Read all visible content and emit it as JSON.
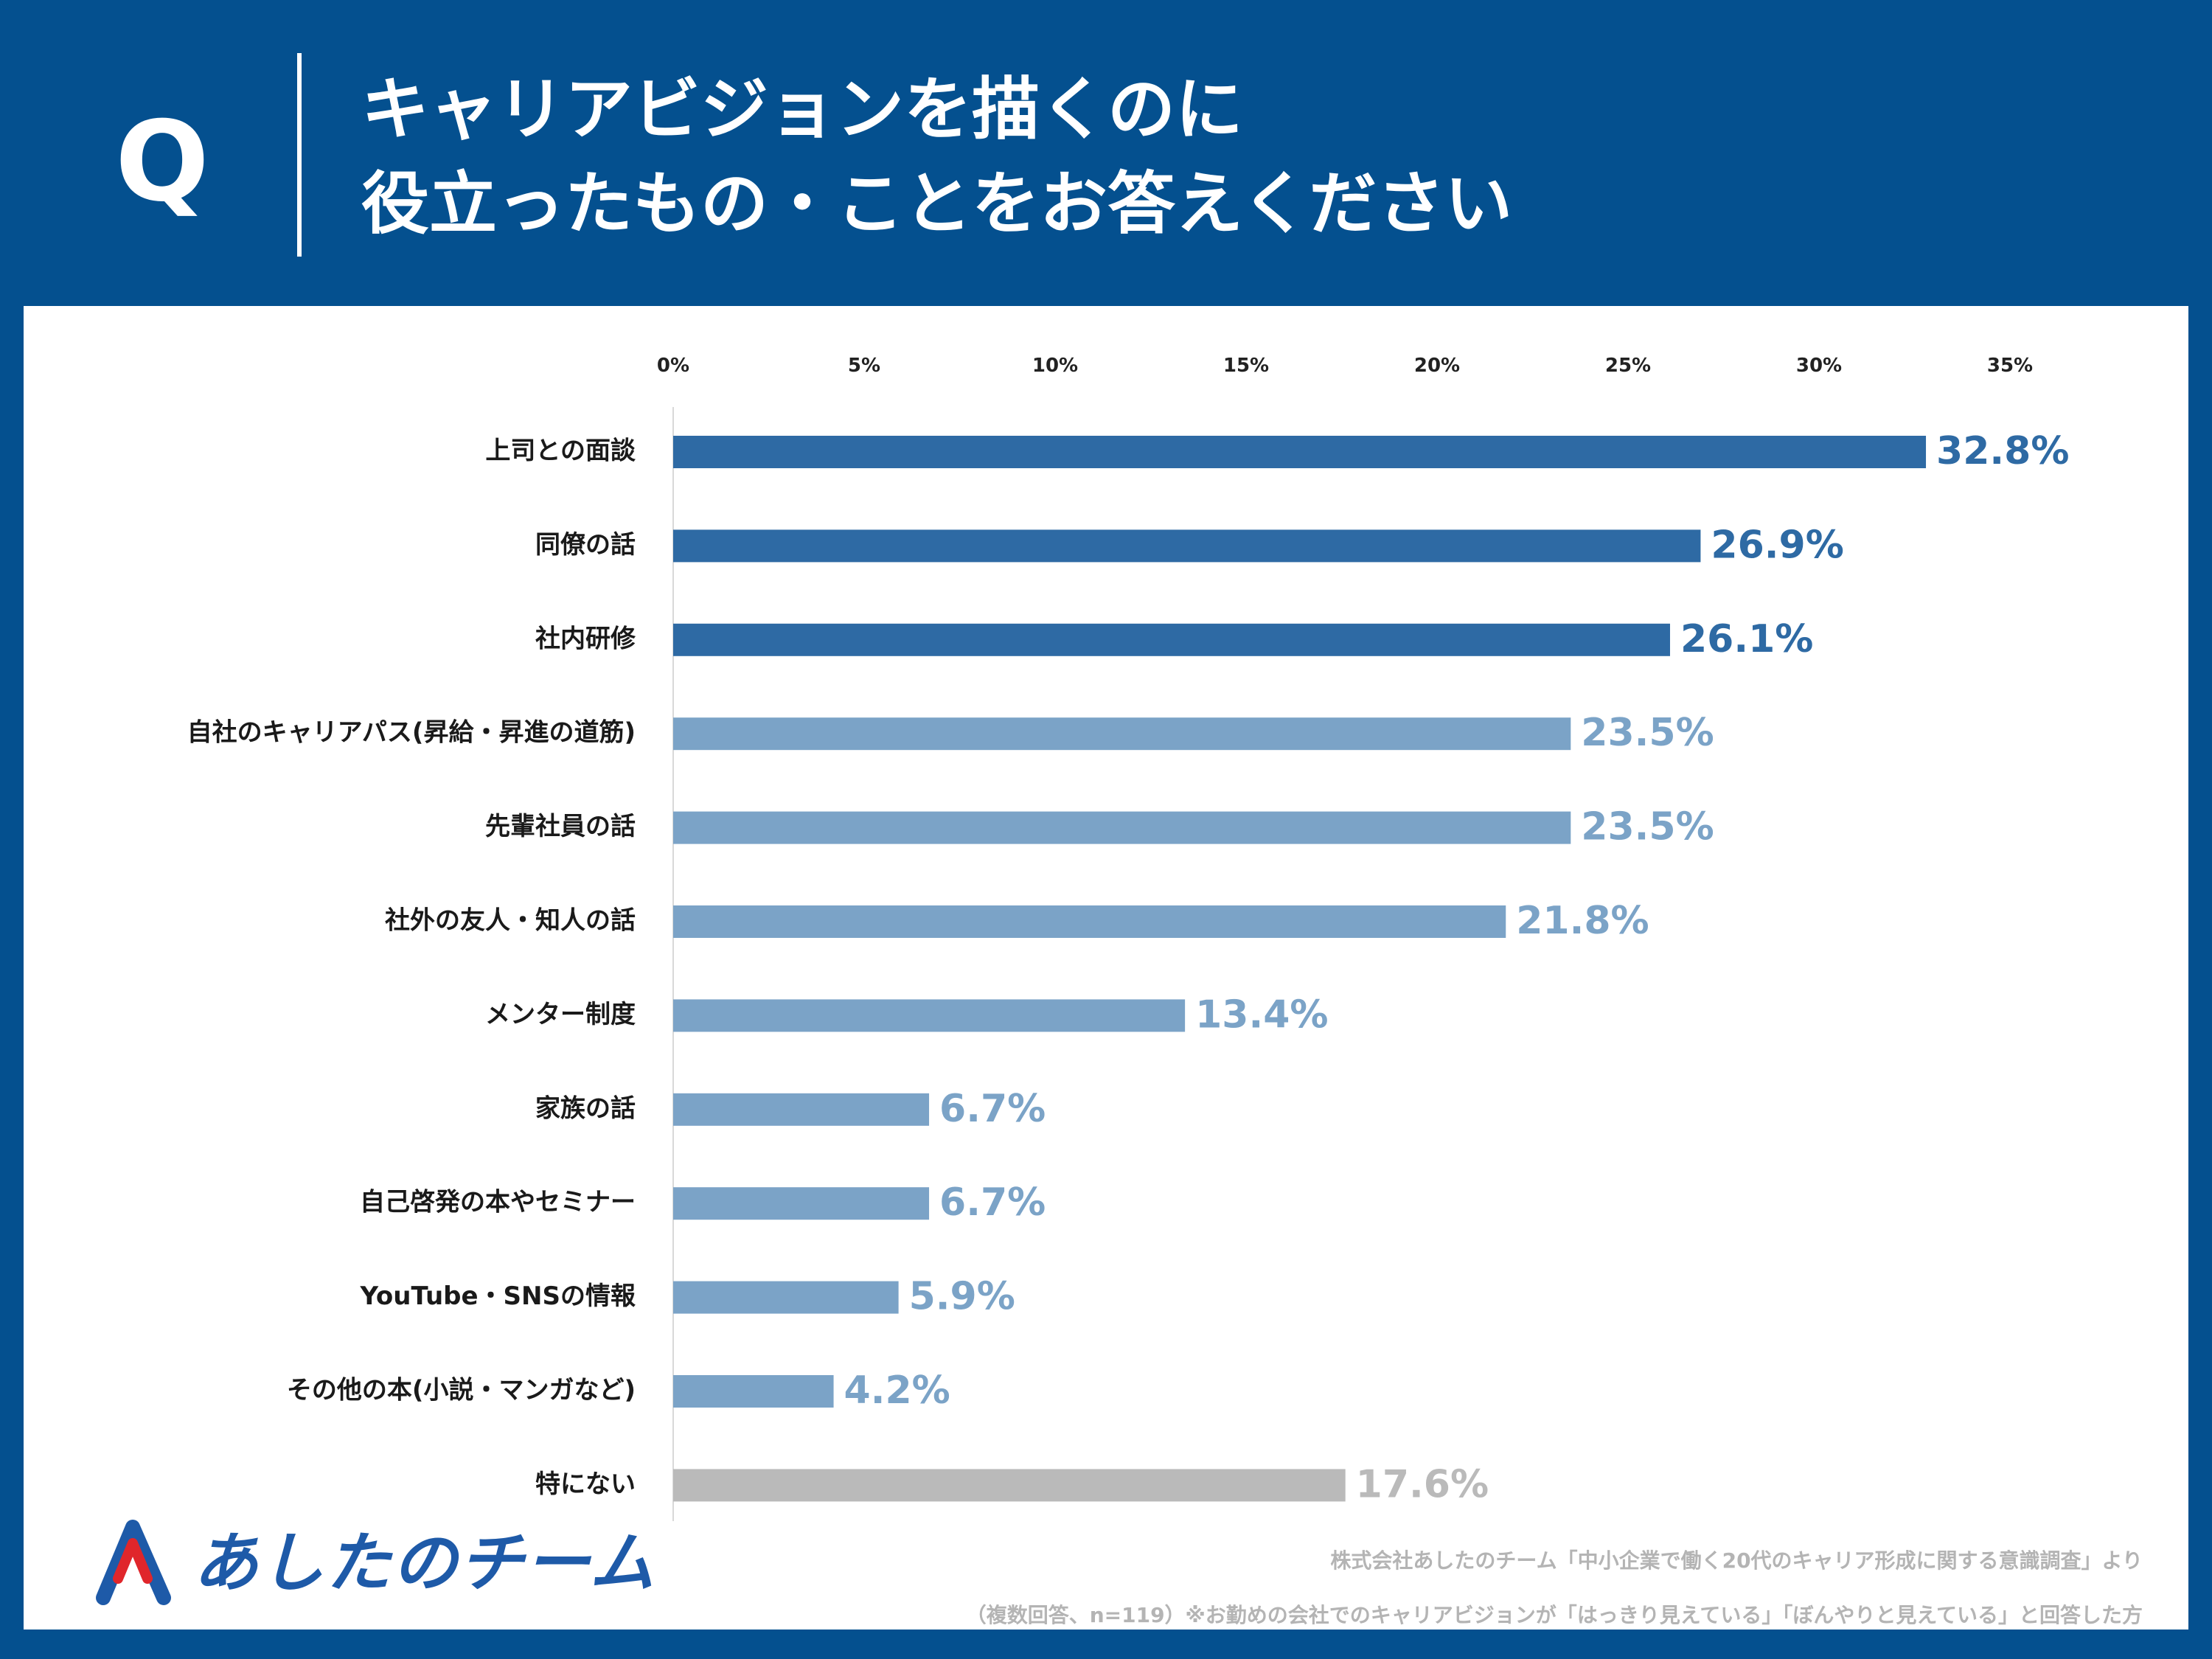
{
  "header": {
    "q_label": "Q",
    "title_line1": "キャリアビジョンを描くのに",
    "title_line2": "役立ったもの・ことをお答えください"
  },
  "colors": {
    "header_bg": "#04508f",
    "bar_top": "#2e6aa4",
    "bar_mid": "#7ba3c7",
    "bar_none": "#bababa"
  },
  "chart_data": {
    "type": "bar",
    "orientation": "horizontal",
    "title": "キャリアビジョンを描くのに役立ったもの・ことをお答えください",
    "xlim": [
      0,
      35
    ],
    "ticks": [
      "0%",
      "5%",
      "10%",
      "15%",
      "20%",
      "25%",
      "30%",
      "35%"
    ],
    "categories": [
      "上司との面談",
      "同僚の話",
      "社内研修",
      "自社のキャリアパス(昇給・昇進の道筋)",
      "先輩社員の話",
      "社外の友人・知人の話",
      "メンター制度",
      "家族の話",
      "自己啓発の本やセミナー",
      "YouTube・SNSの情報",
      "その他の本(小説・マンガなど)",
      "特にない"
    ],
    "values": [
      32.8,
      26.9,
      26.1,
      23.5,
      23.5,
      21.8,
      13.4,
      6.7,
      6.7,
      5.9,
      4.2,
      17.6
    ],
    "value_labels": [
      "32.8%",
      "26.9%",
      "26.1%",
      "23.5%",
      "23.5%",
      "21.8%",
      "13.4%",
      "6.7%",
      "6.7%",
      "5.9%",
      "4.2%",
      "17.6%"
    ],
    "color_groups": [
      "top",
      "top",
      "top",
      "mid",
      "mid",
      "mid",
      "mid",
      "mid",
      "mid",
      "mid",
      "mid",
      "none"
    ]
  },
  "logo": {
    "text": "あしたのチーム"
  },
  "footer": {
    "source": "株式会社あしたのチーム「中小企業で働く20代のキャリア形成に関する意識調査」より",
    "note": "（複数回答、n=119）※お勤めの会社でのキャリアビジョンが「はっきり見えている」「ぼんやりと見えている」と回答した方"
  }
}
